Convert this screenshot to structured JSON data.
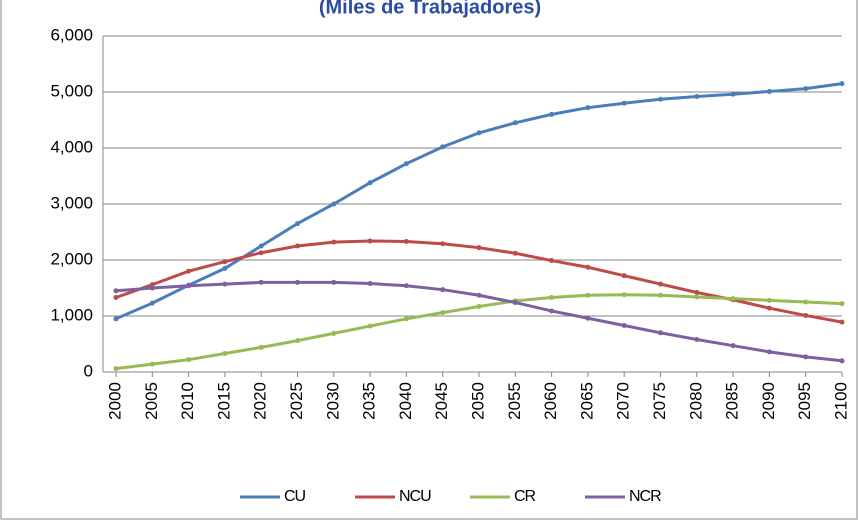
{
  "chart_data": {
    "type": "line",
    "title": "(Miles de Trabajadores)",
    "x": [
      2000,
      2005,
      2010,
      2015,
      2020,
      2025,
      2030,
      2035,
      2040,
      2045,
      2050,
      2055,
      2060,
      2065,
      2070,
      2075,
      2080,
      2085,
      2090,
      2095,
      2100
    ],
    "xlim": [
      2000,
      2100
    ],
    "series": [
      {
        "name": "CU",
        "color": "#4a7ebb",
        "values": [
          950,
          1230,
          1550,
          1850,
          2250,
          2650,
          3000,
          3380,
          3720,
          4020,
          4270,
          4450,
          4600,
          4720,
          4800,
          4870,
          4920,
          4960,
          5010,
          5060,
          5150
        ]
      },
      {
        "name": "NCU",
        "color": "#be4b48",
        "values": [
          1330,
          1560,
          1800,
          1970,
          2130,
          2250,
          2320,
          2340,
          2330,
          2290,
          2220,
          2120,
          1990,
          1870,
          1720,
          1570,
          1420,
          1290,
          1140,
          1010,
          890
        ]
      },
      {
        "name": "CR",
        "color": "#98b954",
        "values": [
          60,
          140,
          220,
          330,
          440,
          560,
          690,
          820,
          950,
          1060,
          1170,
          1270,
          1330,
          1370,
          1380,
          1370,
          1340,
          1310,
          1280,
          1250,
          1220
        ]
      },
      {
        "name": "NCR",
        "color": "#7d60a0",
        "values": [
          1450,
          1500,
          1540,
          1570,
          1600,
          1600,
          1600,
          1580,
          1540,
          1470,
          1370,
          1240,
          1090,
          960,
          830,
          700,
          580,
          470,
          360,
          270,
          200
        ]
      }
    ],
    "ylim": [
      0,
      6000
    ],
    "yticks": [
      0,
      {
        "value": 1000,
        "label": "1,000"
      },
      {
        "value": 2000,
        "label": "2,000"
      },
      {
        "value": 3000,
        "label": "3,000"
      },
      {
        "value": 4000,
        "label": "4,000"
      },
      {
        "value": 5000,
        "label": "5,000"
      },
      {
        "value": 6000,
        "label": "6,000"
      }
    ],
    "grid": true,
    "legend": "bottom"
  }
}
